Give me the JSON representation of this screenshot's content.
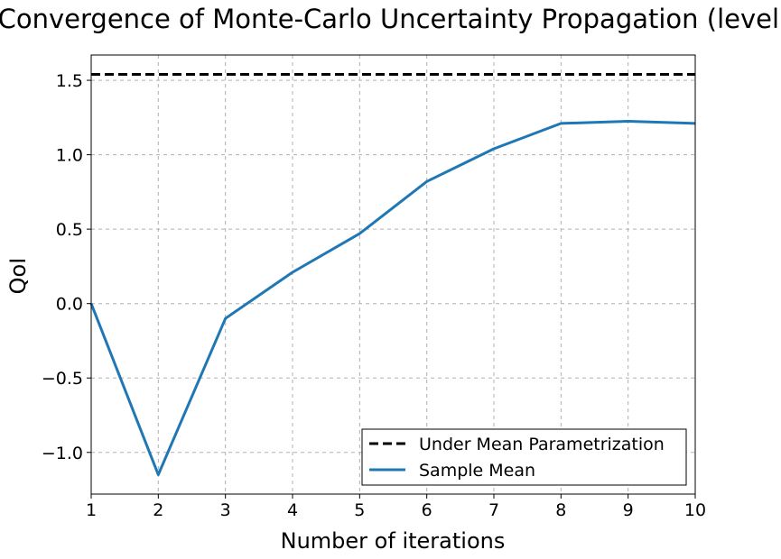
{
  "chart_data": {
    "type": "line",
    "title": "Convergence of Monte-Carlo Uncertainty Propagation (level)",
    "xlabel": "Number of iterations",
    "ylabel": "QoI",
    "xlim": [
      1,
      10
    ],
    "ylim": [
      -1.28,
      1.67
    ],
    "x_ticks": [
      1,
      2,
      3,
      4,
      5,
      6,
      7,
      8,
      9,
      10
    ],
    "x_tick_labels": [
      "1",
      "2",
      "3",
      "4",
      "5",
      "6",
      "7",
      "8",
      "9",
      "10"
    ],
    "y_ticks": [
      1.5,
      1.0,
      0.5,
      0.0,
      -0.5,
      -1.0
    ],
    "y_tick_labels": [
      "1.5",
      "1.0",
      "0.5",
      "0.0",
      "−0.5",
      "−1.0"
    ],
    "grid": true,
    "legend_position": "lower-right",
    "series": [
      {
        "name": "Under Mean Parametrization",
        "style": "dashed",
        "color": "#000000",
        "x": [
          1,
          10
        ],
        "values": [
          1.54,
          1.54
        ]
      },
      {
        "name": "Sample Mean",
        "style": "solid",
        "color": "#1f77b4",
        "x": [
          1,
          2,
          3,
          4,
          5,
          6,
          7,
          8,
          9,
          10
        ],
        "values": [
          0.0,
          -1.15,
          -0.1,
          0.21,
          0.47,
          0.82,
          1.04,
          1.21,
          1.225,
          1.21
        ]
      }
    ]
  }
}
